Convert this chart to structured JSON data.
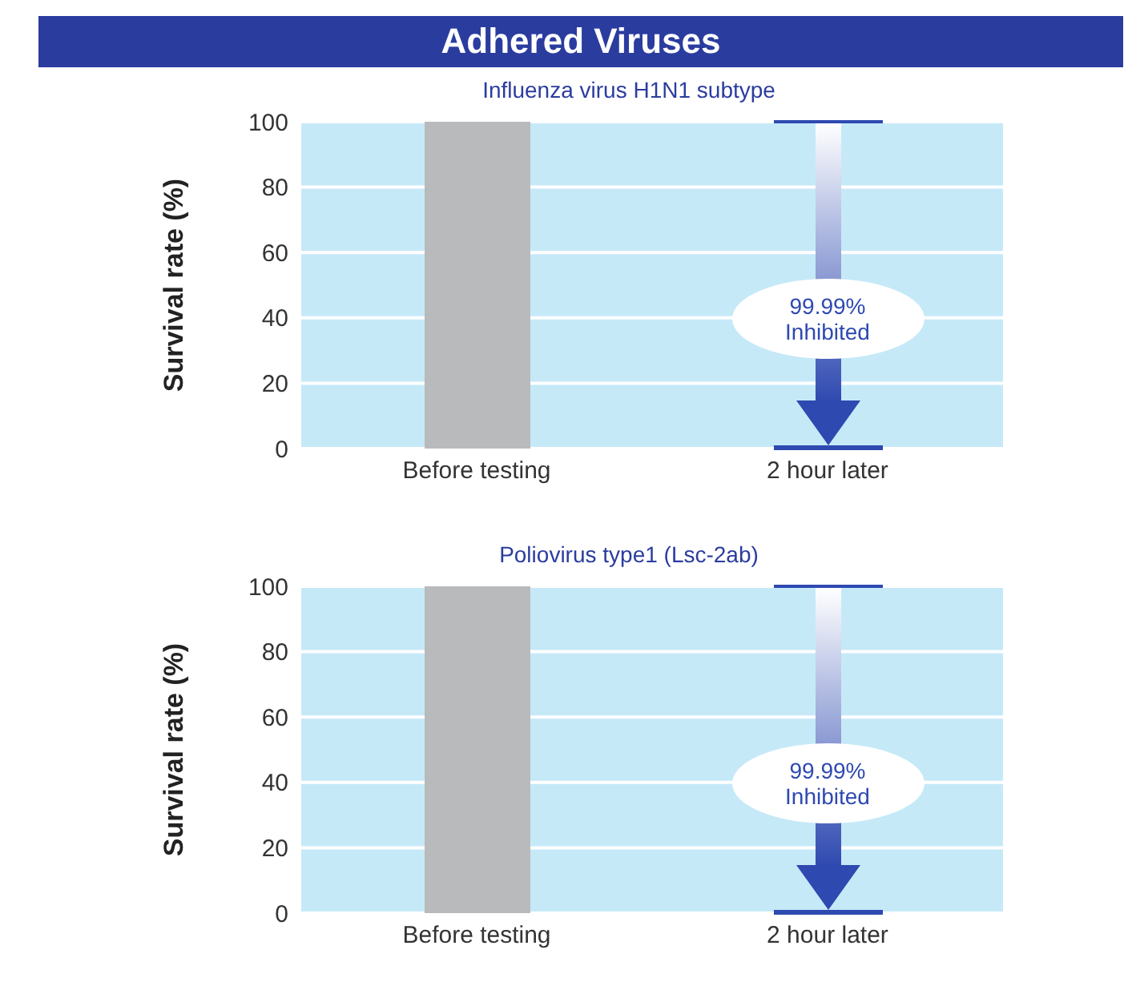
{
  "chart_data": [
    {
      "type": "bar",
      "title": "Adhered Viruses",
      "subtitle": "Influenza virus H1N1 subtype",
      "ylabel": "Survival rate (%)",
      "categories": [
        "Before testing",
        "2 hour later"
      ],
      "values": [
        100,
        0
      ],
      "colors": [
        "#b9babc",
        "#2e49b0"
      ],
      "ylim": [
        0,
        100
      ],
      "yticks": [
        0,
        20,
        40,
        60,
        80,
        100
      ],
      "grid": "y",
      "annotations": [
        "99.99% Inhibited"
      ]
    },
    {
      "type": "bar",
      "subtitle": "Poliovirus type1 (Lsc-2ab)",
      "ylabel": "Survival rate (%)",
      "categories": [
        "Before testing",
        "2 hour later"
      ],
      "values": [
        100,
        0
      ],
      "colors": [
        "#b9babc",
        "#2e49b0"
      ],
      "ylim": [
        0,
        100
      ],
      "yticks": [
        0,
        20,
        40,
        60,
        80,
        100
      ],
      "grid": "y",
      "annotations": [
        "99.99% Inhibited"
      ]
    }
  ]
}
